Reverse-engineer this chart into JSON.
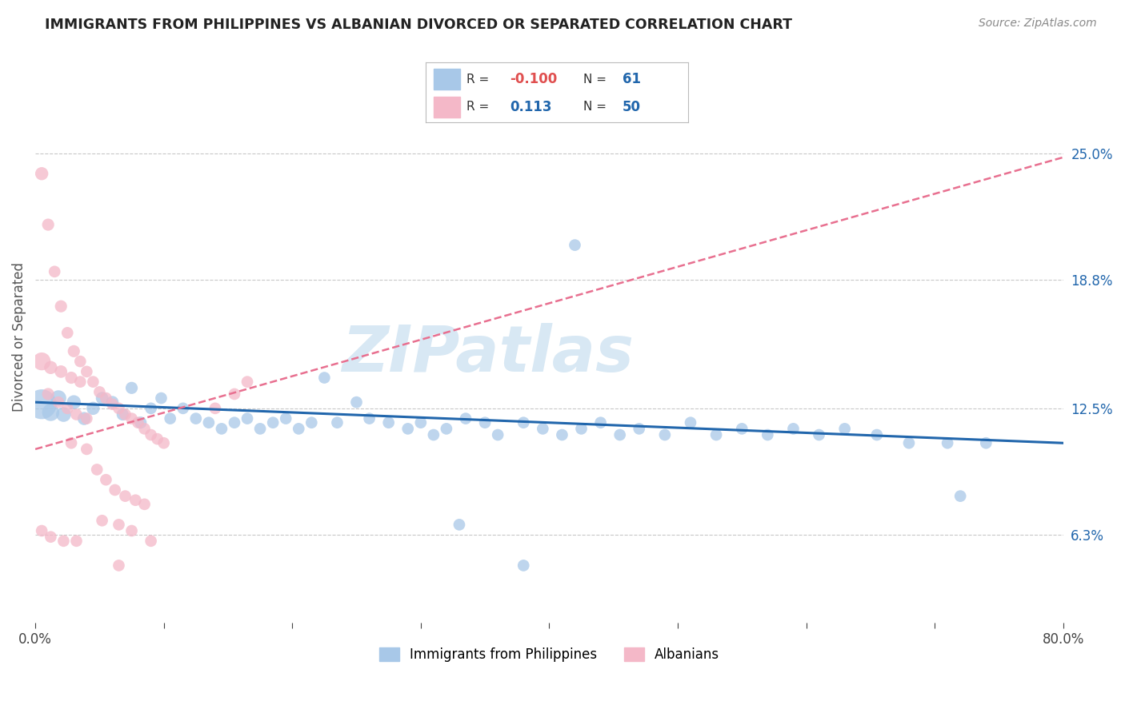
{
  "title": "IMMIGRANTS FROM PHILIPPINES VS ALBANIAN DIVORCED OR SEPARATED CORRELATION CHART",
  "source": "Source: ZipAtlas.com",
  "ylabel": "Divorced or Separated",
  "watermark": "ZIPatlas",
  "legend_blue_R": "-0.100",
  "legend_blue_N": "61",
  "legend_pink_R": "0.113",
  "legend_pink_N": "50",
  "xlim": [
    0.0,
    0.8
  ],
  "ylim": [
    0.02,
    0.3
  ],
  "ytick_vals": [
    0.063,
    0.125,
    0.188,
    0.25
  ],
  "ytick_labels": [
    "6.3%",
    "12.5%",
    "18.8%",
    "25.0%"
  ],
  "blue_points": [
    [
      0.005,
      0.127,
      180
    ],
    [
      0.012,
      0.123,
      60
    ],
    [
      0.018,
      0.13,
      50
    ],
    [
      0.022,
      0.122,
      45
    ],
    [
      0.03,
      0.128,
      40
    ],
    [
      0.038,
      0.12,
      35
    ],
    [
      0.045,
      0.125,
      35
    ],
    [
      0.052,
      0.13,
      32
    ],
    [
      0.06,
      0.128,
      32
    ],
    [
      0.068,
      0.122,
      30
    ],
    [
      0.075,
      0.135,
      30
    ],
    [
      0.082,
      0.118,
      30
    ],
    [
      0.09,
      0.125,
      28
    ],
    [
      0.098,
      0.13,
      28
    ],
    [
      0.105,
      0.12,
      28
    ],
    [
      0.115,
      0.125,
      28
    ],
    [
      0.125,
      0.12,
      28
    ],
    [
      0.135,
      0.118,
      28
    ],
    [
      0.145,
      0.115,
      28
    ],
    [
      0.155,
      0.118,
      28
    ],
    [
      0.165,
      0.12,
      28
    ],
    [
      0.175,
      0.115,
      28
    ],
    [
      0.185,
      0.118,
      28
    ],
    [
      0.195,
      0.12,
      28
    ],
    [
      0.205,
      0.115,
      28
    ],
    [
      0.215,
      0.118,
      28
    ],
    [
      0.225,
      0.14,
      28
    ],
    [
      0.235,
      0.118,
      28
    ],
    [
      0.25,
      0.128,
      28
    ],
    [
      0.26,
      0.12,
      28
    ],
    [
      0.275,
      0.118,
      28
    ],
    [
      0.29,
      0.115,
      28
    ],
    [
      0.3,
      0.118,
      28
    ],
    [
      0.31,
      0.112,
      28
    ],
    [
      0.32,
      0.115,
      28
    ],
    [
      0.335,
      0.12,
      28
    ],
    [
      0.35,
      0.118,
      28
    ],
    [
      0.36,
      0.112,
      28
    ],
    [
      0.38,
      0.118,
      28
    ],
    [
      0.395,
      0.115,
      28
    ],
    [
      0.41,
      0.112,
      28
    ],
    [
      0.425,
      0.115,
      28
    ],
    [
      0.44,
      0.118,
      28
    ],
    [
      0.455,
      0.112,
      28
    ],
    [
      0.47,
      0.115,
      28
    ],
    [
      0.49,
      0.112,
      28
    ],
    [
      0.51,
      0.118,
      28
    ],
    [
      0.53,
      0.112,
      28
    ],
    [
      0.55,
      0.115,
      28
    ],
    [
      0.57,
      0.112,
      28
    ],
    [
      0.59,
      0.115,
      28
    ],
    [
      0.61,
      0.112,
      28
    ],
    [
      0.63,
      0.115,
      28
    ],
    [
      0.655,
      0.112,
      28
    ],
    [
      0.68,
      0.108,
      28
    ],
    [
      0.71,
      0.108,
      28
    ],
    [
      0.74,
      0.108,
      28
    ],
    [
      0.42,
      0.205,
      28
    ],
    [
      0.72,
      0.082,
      28
    ],
    [
      0.33,
      0.068,
      28
    ],
    [
      0.38,
      0.048,
      28
    ]
  ],
  "pink_points": [
    [
      0.005,
      0.24,
      35
    ],
    [
      0.01,
      0.215,
      30
    ],
    [
      0.015,
      0.192,
      28
    ],
    [
      0.02,
      0.175,
      30
    ],
    [
      0.025,
      0.162,
      28
    ],
    [
      0.03,
      0.153,
      30
    ],
    [
      0.035,
      0.148,
      28
    ],
    [
      0.04,
      0.143,
      28
    ],
    [
      0.045,
      0.138,
      28
    ],
    [
      0.05,
      0.133,
      28
    ],
    [
      0.055,
      0.13,
      28
    ],
    [
      0.06,
      0.127,
      28
    ],
    [
      0.065,
      0.125,
      28
    ],
    [
      0.07,
      0.122,
      28
    ],
    [
      0.075,
      0.12,
      28
    ],
    [
      0.08,
      0.118,
      28
    ],
    [
      0.085,
      0.115,
      28
    ],
    [
      0.09,
      0.112,
      28
    ],
    [
      0.095,
      0.11,
      28
    ],
    [
      0.1,
      0.108,
      28
    ],
    [
      0.005,
      0.148,
      65
    ],
    [
      0.012,
      0.145,
      35
    ],
    [
      0.02,
      0.143,
      32
    ],
    [
      0.028,
      0.14,
      30
    ],
    [
      0.035,
      0.138,
      28
    ],
    [
      0.01,
      0.132,
      30
    ],
    [
      0.018,
      0.128,
      28
    ],
    [
      0.025,
      0.125,
      28
    ],
    [
      0.032,
      0.122,
      28
    ],
    [
      0.04,
      0.12,
      28
    ],
    [
      0.048,
      0.095,
      28
    ],
    [
      0.055,
      0.09,
      28
    ],
    [
      0.062,
      0.085,
      28
    ],
    [
      0.07,
      0.082,
      28
    ],
    [
      0.078,
      0.08,
      28
    ],
    [
      0.085,
      0.078,
      28
    ],
    [
      0.14,
      0.125,
      28
    ],
    [
      0.155,
      0.132,
      28
    ],
    [
      0.165,
      0.138,
      28
    ],
    [
      0.028,
      0.108,
      28
    ],
    [
      0.04,
      0.105,
      28
    ],
    [
      0.052,
      0.07,
      28
    ],
    [
      0.065,
      0.068,
      28
    ],
    [
      0.075,
      0.065,
      28
    ],
    [
      0.09,
      0.06,
      28
    ],
    [
      0.005,
      0.065,
      28
    ],
    [
      0.012,
      0.062,
      28
    ],
    [
      0.022,
      0.06,
      28
    ],
    [
      0.032,
      0.06,
      28
    ],
    [
      0.065,
      0.048,
      28
    ]
  ],
  "blue_trend": {
    "x_start": 0.0,
    "x_end": 0.8,
    "y_start": 0.128,
    "y_end": 0.108
  },
  "pink_trend": {
    "x_start": 0.0,
    "x_end": 0.8,
    "y_start": 0.105,
    "y_end": 0.248
  },
  "blue_color": "#a8c8e8",
  "pink_color": "#f4b8c8",
  "blue_line_color": "#2166ac",
  "pink_line_color": "#e87090",
  "grid_color": "#c8c8c8",
  "background_color": "#ffffff",
  "title_color": "#222222",
  "source_color": "#888888",
  "watermark_color": "#d8e8f4"
}
